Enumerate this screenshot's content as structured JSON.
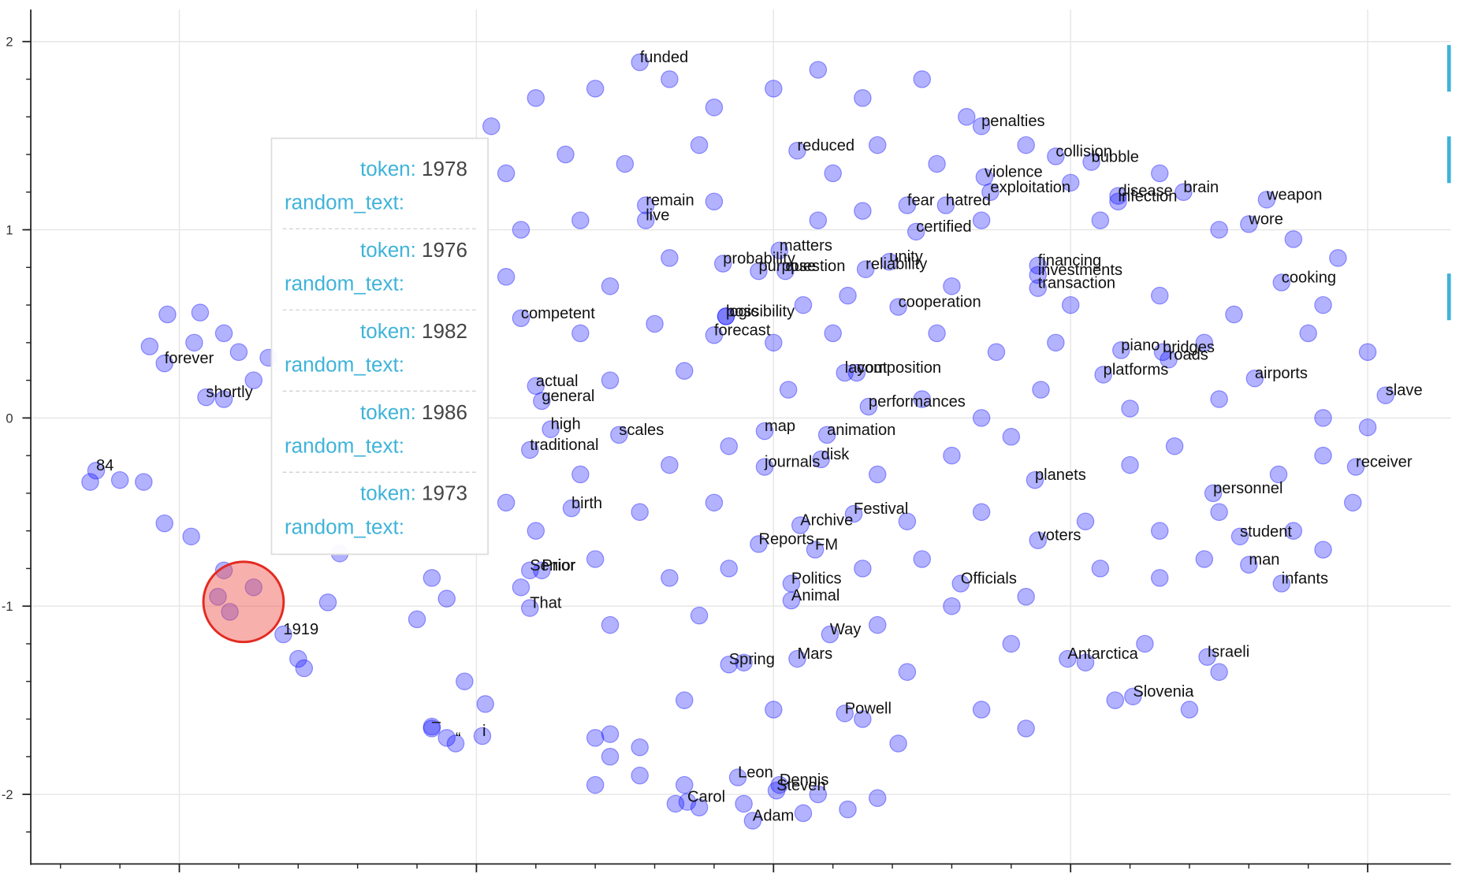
{
  "chart_data": {
    "type": "scatter",
    "color": "#0000ff",
    "alpha": 0.3,
    "grid": true,
    "xlim": [
      -2.5,
      2.28
    ],
    "ylim": [
      -2.37,
      2.17
    ],
    "xticks": [
      -2,
      -1,
      0,
      1,
      2
    ],
    "yticks": [
      -2,
      -1,
      0,
      1,
      2
    ],
    "x": [
      -0.45,
      0.7,
      0.08,
      0.95,
      1.07,
      0.71,
      0.73,
      1.16,
      1.16,
      1.38,
      1.66,
      -0.43,
      -0.43,
      0.45,
      0.58,
      1.6,
      0.48,
      0.02,
      -0.17,
      -0.16,
      -0.05,
      0.04,
      0.39,
      0.31,
      0.89,
      0.89,
      0.89,
      1.71,
      0.42,
      -0.85,
      -0.16,
      -0.2,
      1.17,
      1.31,
      1.33,
      -2.05,
      1.11,
      0.24,
      0.28,
      1.62,
      -0.8,
      -1.91,
      -0.78,
      2.06,
      0.32,
      -0.75,
      -0.03,
      0.18,
      -0.52,
      -0.82,
      0.16,
      -0.03,
      1.96,
      -2.28,
      0.88,
      1.48,
      -0.68,
      0.27,
      0.09,
      1.57,
      0.89,
      -0.05,
      0.14,
      1.6,
      -0.82,
      -0.78,
      0.06,
      1.71,
      0.63,
      0.06,
      -0.82,
      0.19,
      -1.65,
      0.08,
      -0.15,
      0.99,
      1.46,
      1.21,
      0.24,
      -1.15,
      -1.07,
      -0.98,
      -0.12,
      0.02,
      0.01,
      -0.29,
      -0.07,
      -0.95,
      -0.8,
      -0.6,
      -0.35,
      -0.2,
      0.0,
      0.15,
      0.3,
      0.5,
      0.65,
      -0.9,
      -0.7,
      -0.5,
      -0.25,
      0.2,
      0.35,
      0.55,
      0.85,
      1.0,
      1.3,
      -0.85,
      -0.65,
      -0.2,
      0.15,
      0.3,
      0.7,
      1.1,
      1.5,
      1.75,
      1.9,
      -0.9,
      -0.55,
      -0.35,
      0.1,
      0.25,
      0.6,
      1.0,
      1.3,
      1.55,
      1.85,
      -0.65,
      -0.4,
      0.0,
      0.2,
      0.55,
      0.75,
      0.95,
      1.45,
      1.8,
      2.0,
      -0.55,
      -0.3,
      0.05,
      0.5,
      0.7,
      0.9,
      1.2,
      1.5,
      1.85,
      2.0,
      -0.65,
      -0.35,
      -0.15,
      0.35,
      0.6,
      0.8,
      1.2,
      1.35,
      1.7,
      1.85,
      -0.9,
      -0.45,
      -0.2,
      0.45,
      0.7,
      1.05,
      1.3,
      1.75,
      1.95,
      1.5,
      -0.6,
      -0.35,
      -0.15,
      0.3,
      0.5,
      0.85,
      1.1,
      1.3,
      1.85,
      1.45,
      -0.55,
      -0.25,
      0.35,
      0.6,
      0.8,
      1.05,
      1.25,
      1.5,
      -0.1,
      0.45,
      -0.3,
      0.0,
      0.3,
      0.7,
      0.85,
      1.15,
      1.4,
      -0.55,
      -0.45,
      0.42,
      -0.3,
      -0.1,
      0.15,
      0.35,
      -0.6,
      -2.04,
      -1.93,
      -1.85,
      -1.8,
      -1.95,
      -2.1,
      -1.7,
      -1.75,
      -1.85,
      -2.3,
      -2.2,
      -2.12,
      -2.05,
      -1.96,
      -1.85,
      -1.87,
      -1.83,
      -1.75,
      -1.6,
      -1.58,
      -1.5,
      -1.46,
      -1.2,
      -1.1,
      -1.15,
      -1.15,
      -1.1,
      -1.04,
      -0.97,
      -0.85,
      -0.8,
      -0.6,
      -0.55,
      -0.45,
      -0.33,
      -0.25,
      0.1,
      0.25
    ],
    "y": [
      1.89,
      1.55,
      1.42,
      1.39,
      1.36,
      1.28,
      1.2,
      1.18,
      1.15,
      1.2,
      1.16,
      1.13,
      1.05,
      1.13,
      1.13,
      1.03,
      0.99,
      0.89,
      0.82,
      0.54,
      0.78,
      0.78,
      0.83,
      0.79,
      0.81,
      0.76,
      0.69,
      0.72,
      0.59,
      0.53,
      0.54,
      0.44,
      0.36,
      0.35,
      0.31,
      0.29,
      0.23,
      0.24,
      0.24,
      0.21,
      0.17,
      0.11,
      0.09,
      0.12,
      0.06,
      -0.06,
      -0.07,
      -0.09,
      -0.09,
      -0.17,
      -0.22,
      -0.26,
      -0.26,
      -0.28,
      -0.33,
      -0.4,
      -0.48,
      -0.51,
      -0.57,
      -0.63,
      -0.65,
      -0.67,
      -0.7,
      -0.78,
      -0.81,
      -0.81,
      -0.88,
      -0.88,
      -0.88,
      -0.97,
      -1.01,
      -1.15,
      -1.15,
      -1.28,
      -1.31,
      -1.28,
      -1.27,
      -1.48,
      -1.57,
      -1.64,
      -1.73,
      -1.69,
      -1.91,
      -1.95,
      -1.98,
      -2.04,
      -2.14,
      1.55,
      1.7,
      1.75,
      1.8,
      1.65,
      1.75,
      1.85,
      1.7,
      1.8,
      1.6,
      1.3,
      1.4,
      1.35,
      1.45,
      1.3,
      1.45,
      1.35,
      1.45,
      1.25,
      1.3,
      1.0,
      1.05,
      1.15,
      1.05,
      1.1,
      1.05,
      1.05,
      1.0,
      0.95,
      0.85,
      0.75,
      0.7,
      0.85,
      0.6,
      0.65,
      0.7,
      0.6,
      0.65,
      0.55,
      0.6,
      0.45,
      0.5,
      0.4,
      0.45,
      0.45,
      0.35,
      0.4,
      0.4,
      0.45,
      0.35,
      0.2,
      0.25,
      0.15,
      0.1,
      0.0,
      0.15,
      0.05,
      0.1,
      0.0,
      -0.05,
      -0.3,
      -0.25,
      -0.15,
      -0.3,
      -0.2,
      -0.1,
      -0.25,
      -0.15,
      -0.3,
      -0.2,
      -0.45,
      -0.5,
      -0.45,
      -0.55,
      -0.5,
      -0.55,
      -0.6,
      -0.6,
      -0.45,
      -0.5,
      -0.75,
      -0.85,
      -0.8,
      -0.8,
      -0.75,
      -0.95,
      -0.8,
      -0.85,
      -0.7,
      -0.75,
      -1.1,
      -1.05,
      -1.1,
      -1.0,
      -1.2,
      -1.3,
      -1.2,
      -1.35,
      -1.3,
      -1.35,
      -1.5,
      -1.55,
      -1.6,
      -1.55,
      -1.65,
      -1.5,
      -1.55,
      -1.68,
      -1.75,
      -1.73,
      -1.95,
      -2.05,
      -2.0,
      -2.02,
      -1.95,
      0.55,
      0.56,
      0.45,
      0.35,
      0.4,
      0.38,
      0.32,
      0.2,
      0.1,
      -0.34,
      -0.33,
      -0.34,
      -0.56,
      -0.63,
      -0.81,
      -0.95,
      -1.03,
      -0.9,
      -1.28,
      -1.33,
      -0.98,
      -0.72,
      -1.07,
      -0.96,
      -0.85,
      -1.65,
      -1.7,
      -1.4,
      -1.52,
      -0.9,
      -0.6,
      -1.7,
      -1.8,
      -1.9,
      -2.05,
      -2.07,
      -2.1,
      -2.08
    ],
    "labels": [
      "funded",
      "penalties",
      "reduced",
      "collision",
      "bubble",
      "violence",
      "exploitation",
      "disease",
      "infection",
      "brain",
      "weapon",
      "remain",
      "live",
      "fear",
      "hatred",
      "wore",
      "certified",
      "matters",
      "probability",
      "logic",
      "purpose",
      "question",
      "unity",
      "reliability",
      "financing",
      "investments",
      "transaction",
      "cooking",
      "cooperation",
      "competent",
      "possibility",
      "forecast",
      "piano",
      "bridges",
      "roads",
      "forever",
      "platforms",
      "layout",
      "composition",
      "airports",
      "actual",
      "shortly",
      "general",
      "slave",
      "performances",
      "high",
      "map",
      "animation",
      "scales",
      "traditional",
      "disk",
      "journals",
      "receiver",
      "84",
      "planets",
      "personnel",
      "birth",
      "Festival",
      "Archive",
      "student",
      "voters",
      "Reports",
      "FM",
      "man",
      "Senior",
      "Prior",
      "Politics",
      "infants",
      "Officials",
      "Animal",
      "That",
      "Way",
      "1919",
      "Mars",
      "Spring",
      "Antarctica",
      "Israeli",
      "Slovenia",
      "Powell",
      "–",
      "“",
      "i",
      "Leon",
      "Dennis",
      "Steven",
      "Carol",
      "Adam",
      null,
      null,
      null,
      null,
      null,
      null,
      null,
      null,
      null,
      null,
      null,
      null,
      null,
      null,
      null,
      null,
      null,
      null,
      null,
      null,
      null,
      null,
      null,
      null,
      null,
      null,
      null,
      null,
      null,
      null,
      null,
      null,
      null,
      null,
      null,
      null,
      null,
      null,
      null,
      null,
      null,
      null,
      null,
      null,
      null,
      null,
      null,
      null,
      null,
      null,
      null,
      null,
      null,
      null,
      null,
      null,
      null,
      null,
      null,
      null,
      null,
      null,
      null,
      null,
      null,
      null,
      null,
      null,
      null,
      null,
      null,
      null,
      null,
      null,
      null,
      null,
      null,
      null,
      null,
      null,
      null,
      null,
      null,
      null,
      null,
      null,
      null,
      null,
      null,
      null,
      null,
      null,
      null,
      null,
      null,
      null,
      null,
      null,
      null,
      null,
      null,
      null,
      null,
      null,
      null,
      null,
      null,
      null,
      null,
      null,
      null,
      null,
      null,
      null,
      null,
      null,
      null,
      null,
      null,
      null,
      null,
      null,
      null,
      null,
      null,
      null,
      null,
      null,
      null,
      null,
      null,
      null,
      null,
      null,
      null,
      null,
      null,
      null,
      null,
      null,
      null,
      null,
      null,
      null,
      null,
      null,
      null,
      null,
      null,
      null,
      null,
      null,
      null
    ]
  },
  "tooltip": {
    "entries": [
      {
        "token_label": "token:",
        "token": "1978",
        "text_label": "random_text:"
      },
      {
        "token_label": "token:",
        "token": "1976",
        "text_label": "random_text:"
      },
      {
        "token_label": "token:",
        "token": "1982",
        "text_label": "random_text:"
      },
      {
        "token_label": "token:",
        "token": "1986",
        "text_label": "random_text:"
      },
      {
        "token_label": "token:",
        "token": "1973",
        "text_label": "random_text:"
      }
    ]
  }
}
